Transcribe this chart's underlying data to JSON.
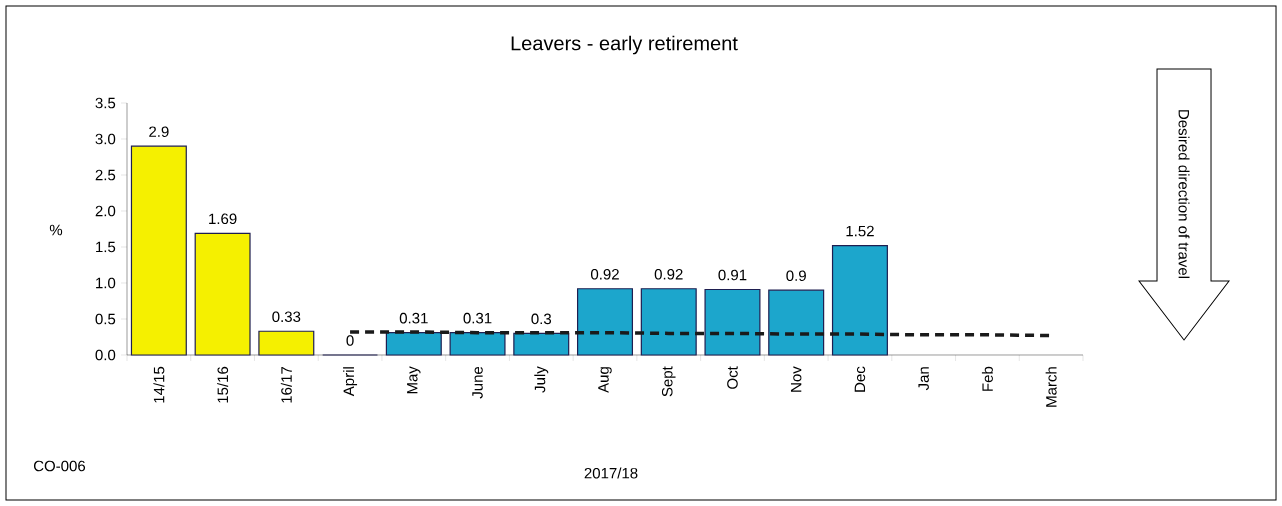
{
  "chart_data": {
    "type": "bar",
    "title": "Leavers - early retirement",
    "xlabel": "2017/18",
    "ylabel": "%",
    "categories": [
      "14/15",
      "15/16",
      "16/17",
      "April",
      "May",
      "June",
      "July",
      "Aug",
      "Sept",
      "Oct",
      "Nov",
      "Dec",
      "Jan",
      "Feb",
      "March"
    ],
    "series": [
      {
        "colors": [
          "#f5f000",
          "#f5f000",
          "#f5f000",
          "#1ca6cc",
          "#1ca6cc",
          "#1ca6cc",
          "#1ca6cc",
          "#1ca6cc",
          "#1ca6cc",
          "#1ca6cc",
          "#1ca6cc",
          "#1ca6cc",
          "#1ca6cc",
          "#1ca6cc",
          "#1ca6cc"
        ],
        "values": [
          2.9,
          1.69,
          0.33,
          0,
          0.31,
          0.31,
          0.3,
          0.92,
          0.92,
          0.91,
          0.9,
          1.52,
          null,
          null,
          null
        ],
        "value_labels": [
          "2.9",
          "1.69",
          "0.33",
          "0",
          "0.31",
          "0.31",
          "0.3",
          "0.92",
          "0.92",
          "0.91",
          "0.9",
          "1.52",
          null,
          null,
          null
        ]
      },
      {
        "type": "line",
        "color": "#1a1a1a",
        "line_style": "dashed",
        "values": [
          null,
          null,
          null,
          0.32,
          0.32,
          0.31,
          0.31,
          0.31,
          0.3,
          0.3,
          0.29,
          0.29,
          0.28,
          0.28,
          0.27
        ]
      }
    ],
    "ylim": [
      0,
      3.5
    ],
    "yticks": [
      {
        "value": 0,
        "label": "0.0"
      },
      {
        "value": 0.5,
        "label": "0.5"
      },
      {
        "value": 1,
        "label": "1.0"
      },
      {
        "value": 1.5,
        "label": "1.5"
      },
      {
        "value": 2,
        "label": "2.0"
      },
      {
        "value": 2.5,
        "label": "2.5"
      },
      {
        "value": 3,
        "label": "3.0"
      },
      {
        "value": 3.5,
        "label": "3.5"
      }
    ],
    "annotations": [
      "CO-006",
      "Desired direction of travel"
    ]
  }
}
